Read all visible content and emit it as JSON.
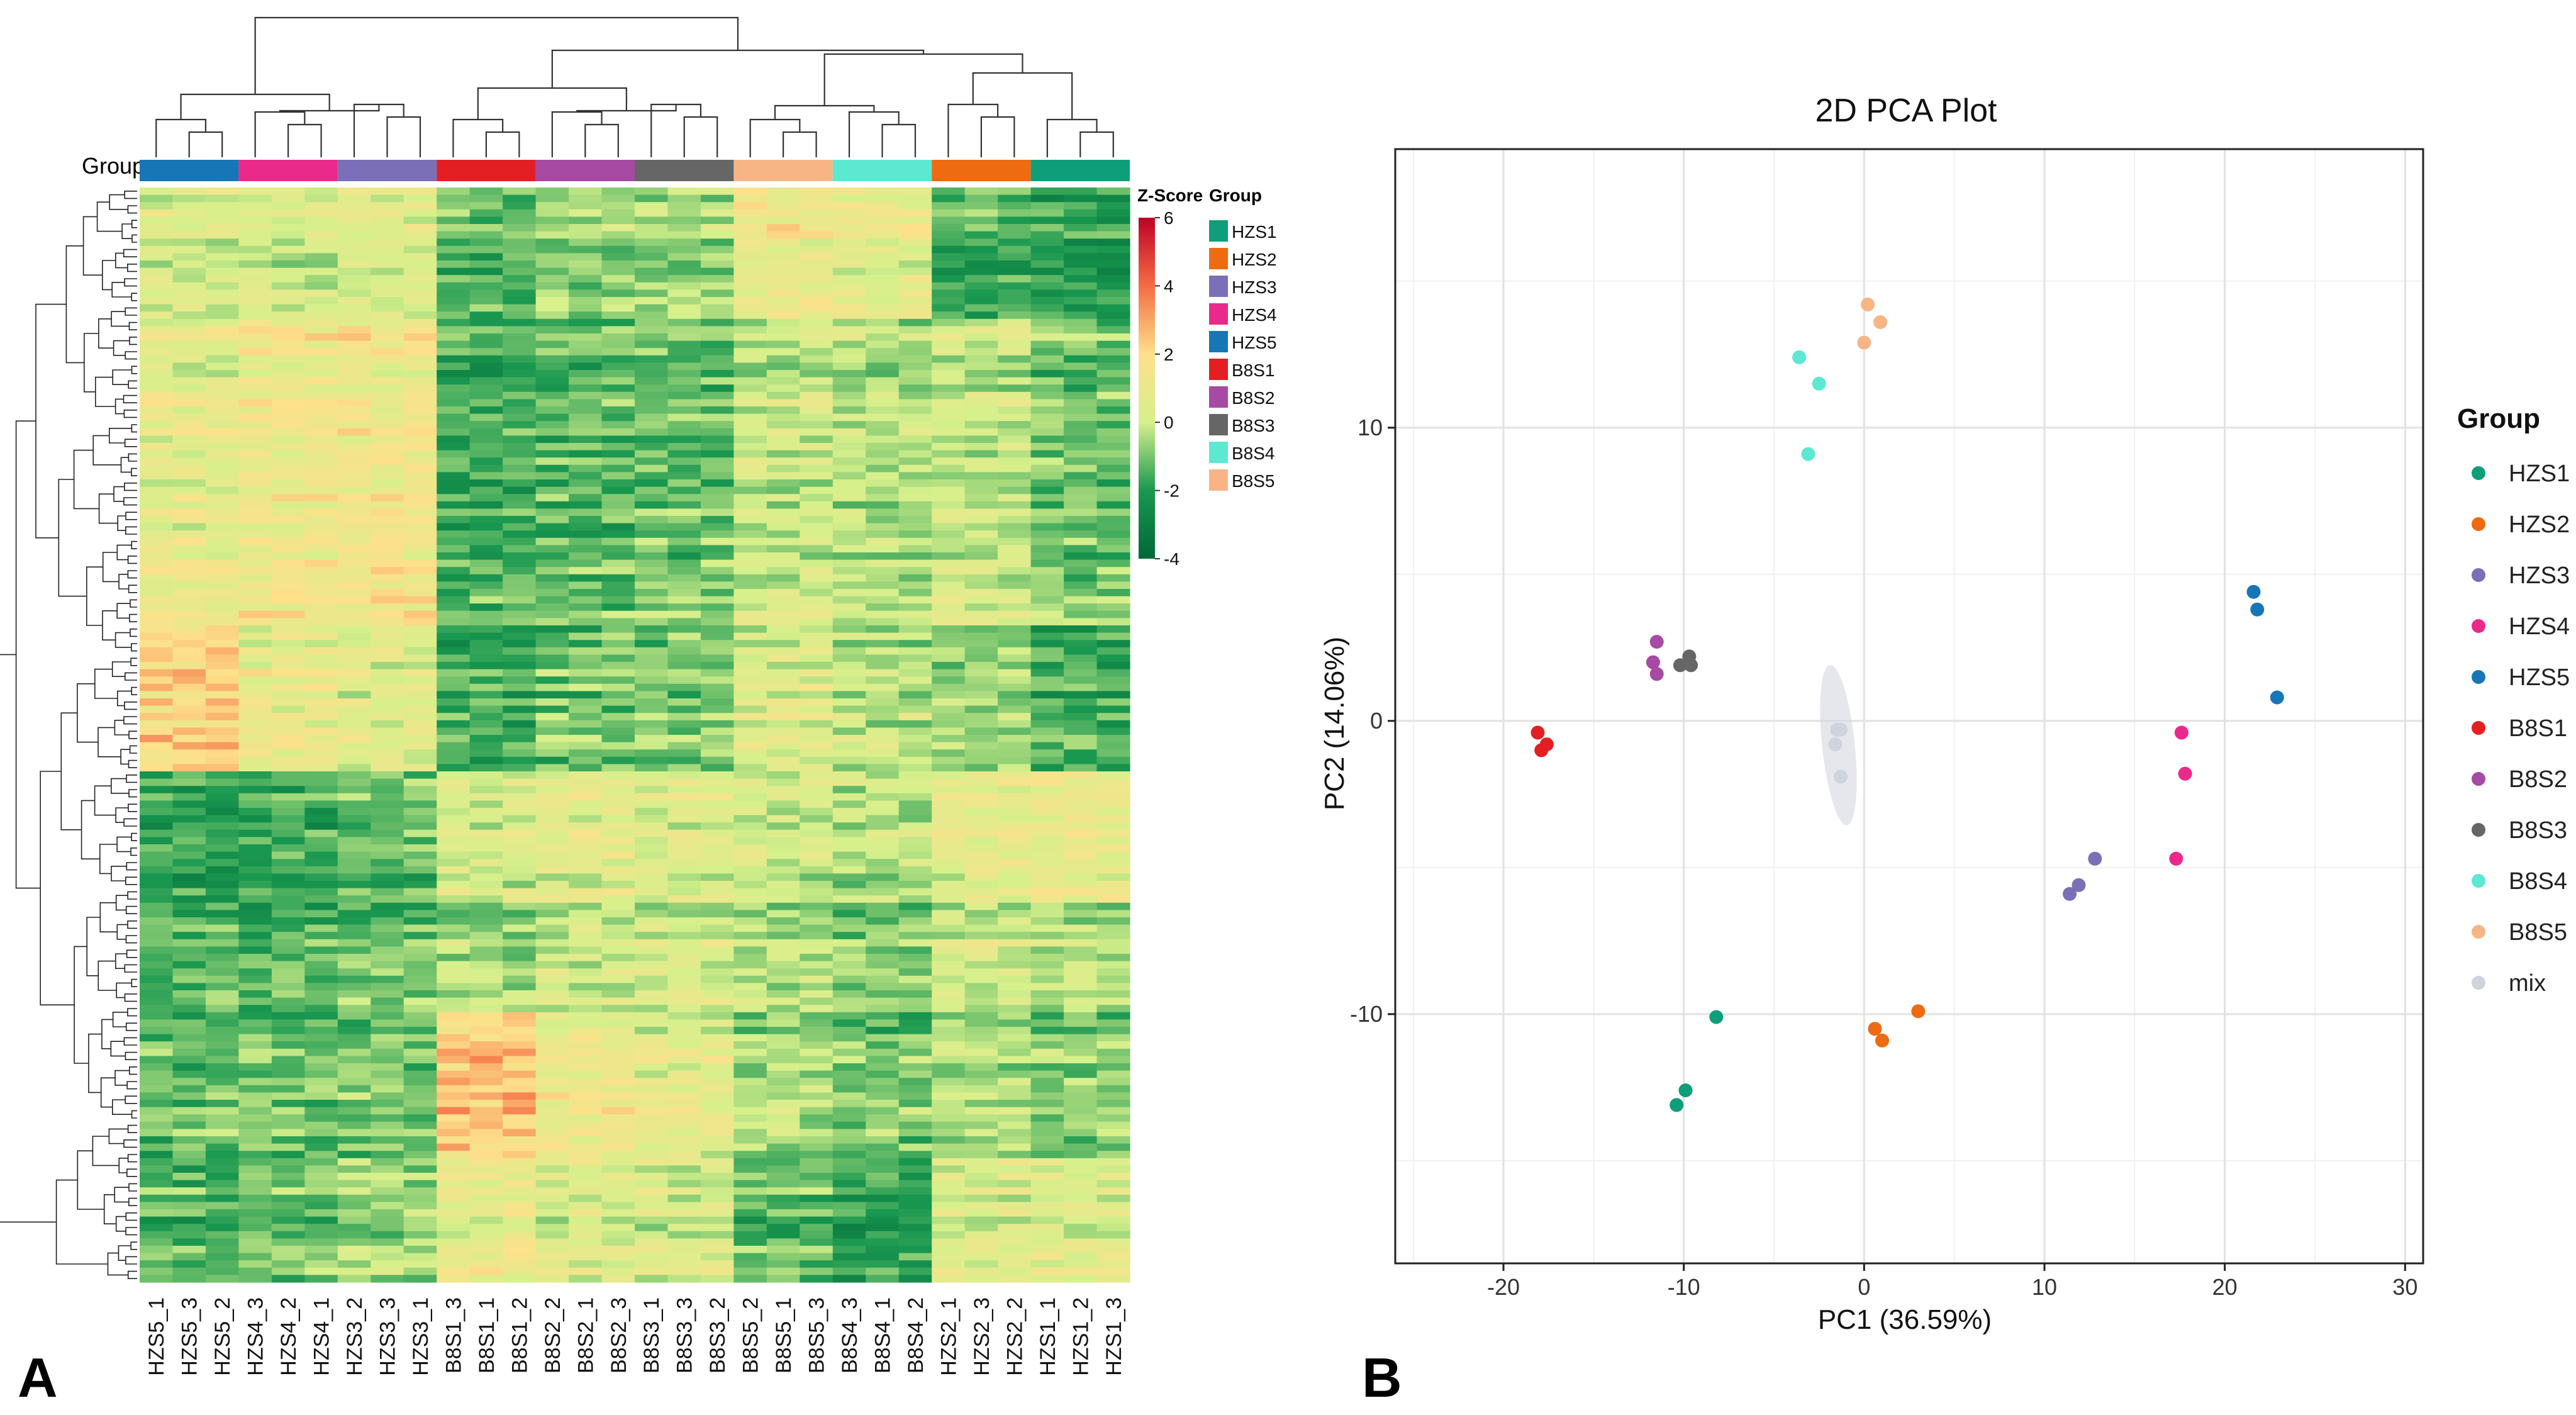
{
  "panels": {
    "a": "A",
    "b": "B"
  },
  "colors": {
    "HZS1": "#0f9e7a",
    "HZS2": "#ee6b12",
    "HZS3": "#7b6fb8",
    "HZS4": "#ea2a8a",
    "HZS5": "#1776b6",
    "B8S1": "#e41f23",
    "B8S2": "#a64aa4",
    "B8S3": "#666666",
    "B8S4": "#5de8d2",
    "B8S5": "#f7b586",
    "mix": "#cfd3dc"
  },
  "heatmap": {
    "group_label": "Group",
    "columns": [
      "HZS5_1",
      "HZS5_3",
      "HZS5_2",
      "HZS4_3",
      "HZS4_2",
      "HZS4_1",
      "HZS3_2",
      "HZS3_3",
      "HZS3_1",
      "B8S1_3",
      "B8S1_1",
      "B8S1_2",
      "B8S2_2",
      "B8S2_1",
      "B8S2_3",
      "B8S3_1",
      "B8S3_3",
      "B8S3_2",
      "B8S5_2",
      "B8S5_1",
      "B8S5_3",
      "B8S4_3",
      "B8S4_1",
      "B8S4_2",
      "HZS2_1",
      "HZS2_3",
      "HZS2_2",
      "HZS1_1",
      "HZS1_2",
      "HZS1_3"
    ],
    "column_groups": [
      "HZS5",
      "HZS4",
      "HZS3",
      "B8S1",
      "B8S2",
      "B8S3",
      "B8S5",
      "B8S4",
      "HZS2",
      "HZS1"
    ],
    "zscore_title": "Z-Score",
    "zscore_ticks": [
      "6",
      "4",
      "2",
      "0",
      "-2",
      "-4"
    ],
    "legend_title": "Group",
    "legend_items": [
      "HZS1",
      "HZS2",
      "HZS3",
      "HZS4",
      "HZS5",
      "B8S1",
      "B8S2",
      "B8S3",
      "B8S4",
      "B8S5"
    ]
  },
  "chart_data": {
    "type": "scatter",
    "title": "2D PCA Plot",
    "xlabel": "PC1 (36.59%)",
    "ylabel": "PC2 (14.06%)",
    "xlim": [
      -26,
      31
    ],
    "ylim": [
      -18.5,
      19.5
    ],
    "xticks": [
      -20,
      -10,
      0,
      10,
      20,
      30
    ],
    "yticks": [
      -10,
      0,
      10
    ],
    "grid": true,
    "legend_title": "Group",
    "legend_position": "right",
    "series": [
      {
        "name": "HZS1",
        "points": [
          [
            -8.2,
            -10.1
          ],
          [
            -9.9,
            -12.6
          ],
          [
            -10.4,
            -13.1
          ]
        ]
      },
      {
        "name": "HZS2",
        "points": [
          [
            3.0,
            -9.9
          ],
          [
            0.6,
            -10.5
          ],
          [
            1.0,
            -10.9
          ]
        ]
      },
      {
        "name": "HZS3",
        "points": [
          [
            12.8,
            -4.7
          ],
          [
            11.9,
            -5.6
          ],
          [
            11.4,
            -5.9
          ]
        ]
      },
      {
        "name": "HZS4",
        "points": [
          [
            17.6,
            -0.4
          ],
          [
            17.8,
            -1.8
          ],
          [
            17.3,
            -4.7
          ]
        ]
      },
      {
        "name": "HZS5",
        "points": [
          [
            21.6,
            4.4
          ],
          [
            21.8,
            3.8
          ],
          [
            22.9,
            0.8
          ]
        ]
      },
      {
        "name": "B8S1",
        "points": [
          [
            -18.1,
            -0.4
          ],
          [
            -17.6,
            -0.8
          ],
          [
            -17.9,
            -1.0
          ]
        ]
      },
      {
        "name": "B8S2",
        "points": [
          [
            -11.5,
            2.7
          ],
          [
            -11.7,
            2.0
          ],
          [
            -11.5,
            1.6
          ]
        ]
      },
      {
        "name": "B8S3",
        "points": [
          [
            -9.7,
            2.2
          ],
          [
            -10.2,
            1.9
          ],
          [
            -9.6,
            1.9
          ]
        ]
      },
      {
        "name": "B8S4",
        "points": [
          [
            -3.6,
            12.4
          ],
          [
            -2.5,
            11.5
          ],
          [
            -3.1,
            9.1
          ]
        ]
      },
      {
        "name": "B8S5",
        "points": [
          [
            0.2,
            14.2
          ],
          [
            0.9,
            13.6
          ],
          [
            0.0,
            12.9
          ]
        ]
      },
      {
        "name": "mix",
        "points": [
          [
            -1.5,
            -0.3
          ],
          [
            -1.3,
            -0.3
          ],
          [
            -1.6,
            -0.8
          ],
          [
            -1.3,
            -1.9
          ]
        ]
      }
    ]
  }
}
